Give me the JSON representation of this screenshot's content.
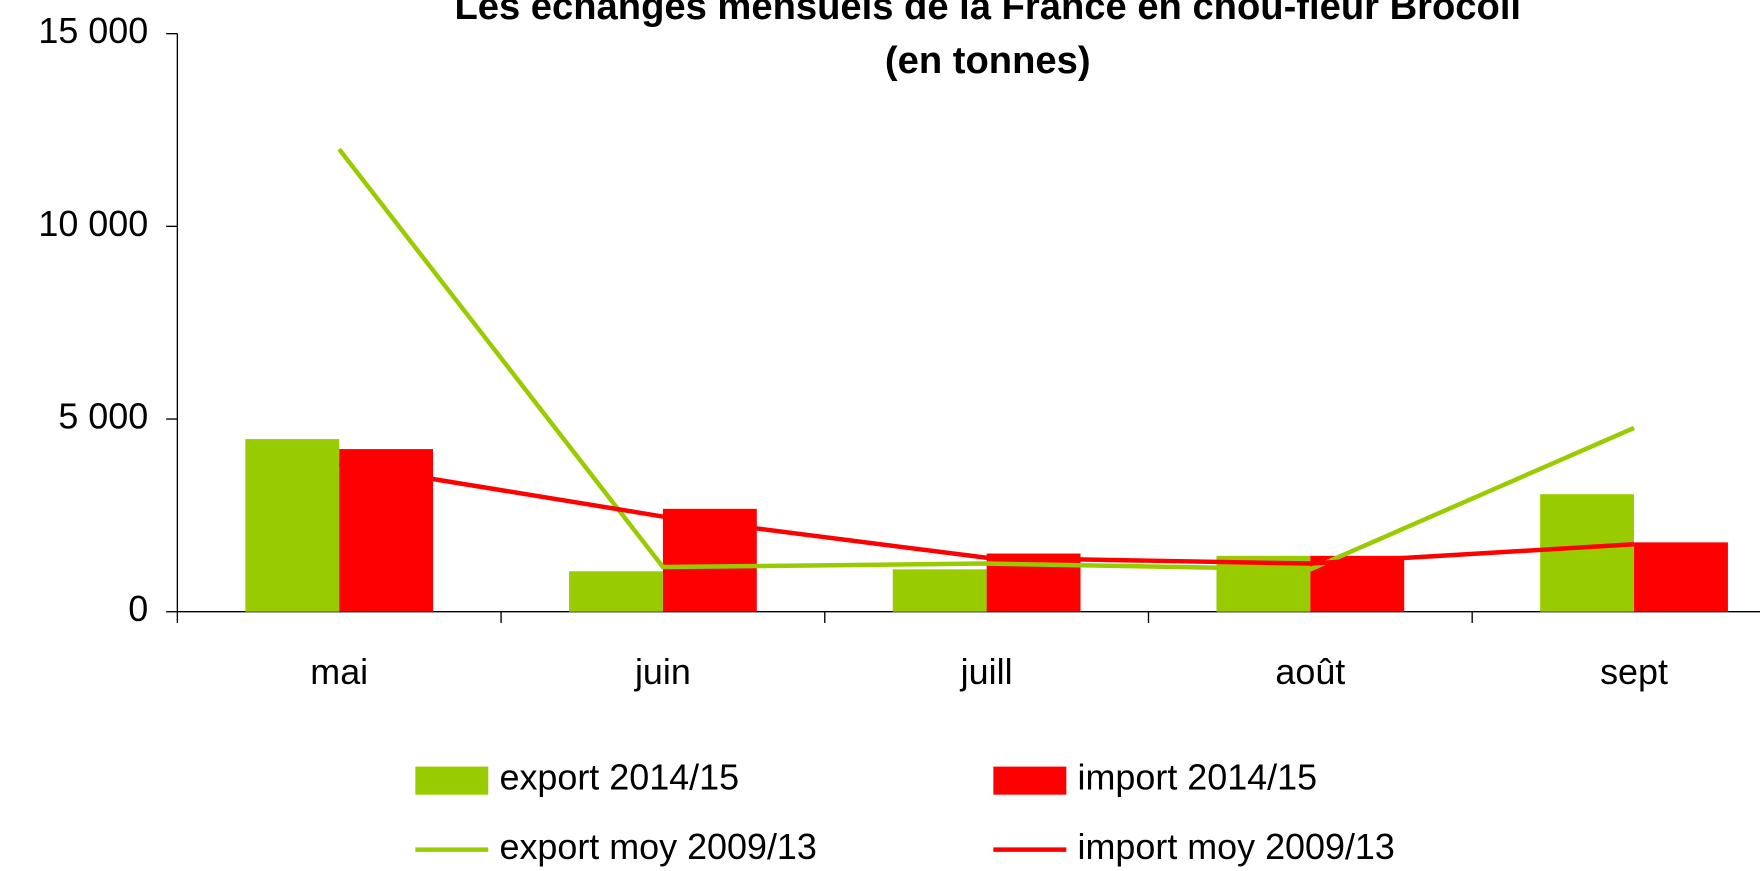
{
  "chart_data": {
    "type": "bar_line",
    "title": [
      "Les échanges mensuels de la France en chou-fleur Brocoli",
      "(en tonnes)"
    ],
    "categories": [
      "mai",
      "juin",
      "juill",
      "août",
      "sept"
    ],
    "series": [
      {
        "name": "export 2014/15",
        "kind": "bar",
        "color": "#99cc00",
        "values": [
          4480,
          1050,
          1100,
          1450,
          3050
        ]
      },
      {
        "name": "import 2014/15",
        "kind": "bar",
        "color": "#ff0000",
        "values": [
          4220,
          2670,
          1510,
          1450,
          1800
        ]
      },
      {
        "name": "export moy 2009/13",
        "kind": "line",
        "color": "#99cc00",
        "values": [
          12000,
          1160,
          1250,
          1100,
          4770
        ]
      },
      {
        "name": "import moy 2009/13",
        "kind": "line",
        "color": "#ff0000",
        "values": [
          3840,
          2470,
          1400,
          1250,
          1750
        ]
      }
    ],
    "ylim": [
      0,
      15000
    ],
    "yticks": [
      0,
      {
        "value": 5000,
        "label": "5 000"
      },
      {
        "value": 10000,
        "label": "10 000"
      },
      {
        "value": 15000,
        "label": "15 000"
      }
    ],
    "legend": "bottom"
  }
}
